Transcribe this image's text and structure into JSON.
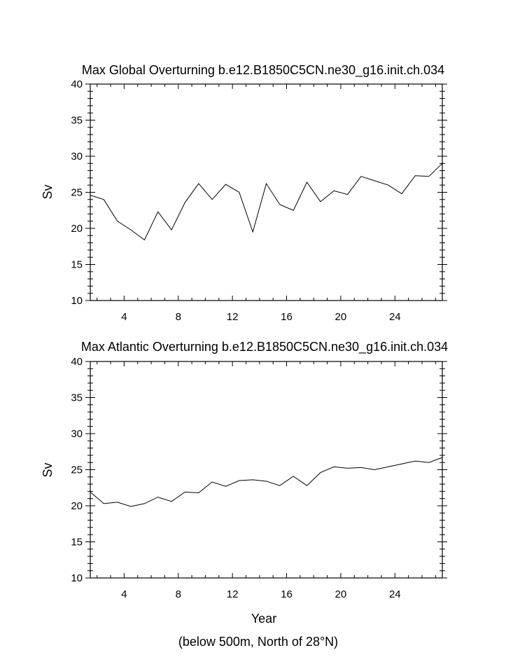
{
  "chart_data": [
    {
      "type": "line",
      "title": "Max Global Overturning b.e12.B1850C5CN.ne30_g16.init.ch.034",
      "ylabel": "Sv",
      "xlabel": "",
      "ylim": [
        10,
        40
      ],
      "xlim": [
        1.5,
        27.5
      ],
      "x_ticks": [
        4,
        8,
        12,
        16,
        20,
        24
      ],
      "y_ticks": [
        10,
        15,
        20,
        25,
        30,
        35,
        40
      ],
      "grid": false,
      "series": [
        {
          "x": [
            1.5,
            2.5,
            3.5,
            4.5,
            5.5,
            6.5,
            7.5,
            8.5,
            9.5,
            10.5,
            11.5,
            12.5,
            13.5,
            14.5,
            15.5,
            16.5,
            17.5,
            18.5,
            19.5,
            20.5,
            21.5,
            22.5,
            23.5,
            24.5,
            25.5,
            26.5,
            27.5
          ],
          "values": [
            24.6,
            24.0,
            21.0,
            19.8,
            18.4,
            22.3,
            19.8,
            23.6,
            26.2,
            24.0,
            26.1,
            25.0,
            19.5,
            26.2,
            23.3,
            22.5,
            26.4,
            23.7,
            25.2,
            24.7,
            27.2,
            26.6,
            26.0,
            24.8,
            27.3,
            27.2,
            29.0
          ]
        }
      ]
    },
    {
      "type": "line",
      "title": "Max Atlantic Overturning b.e12.B1850C5CN.ne30_g16.init.ch.034",
      "ylabel": "Sv",
      "xlabel": "Year",
      "subcaption": "(below 500m, North of 28°N)",
      "ylim": [
        10,
        40
      ],
      "xlim": [
        1.5,
        27.5
      ],
      "x_ticks": [
        4,
        8,
        12,
        16,
        20,
        24
      ],
      "y_ticks": [
        10,
        15,
        20,
        25,
        30,
        35,
        40
      ],
      "grid": false,
      "series": [
        {
          "x": [
            1.5,
            2.5,
            3.5,
            4.5,
            5.5,
            6.5,
            7.5,
            8.5,
            9.5,
            10.5,
            11.5,
            12.5,
            13.5,
            14.5,
            15.5,
            16.5,
            17.5,
            18.5,
            19.5,
            20.5,
            21.5,
            22.5,
            23.5,
            24.5,
            25.5,
            26.5,
            27.5
          ],
          "values": [
            21.9,
            20.3,
            20.5,
            19.9,
            20.3,
            21.2,
            20.6,
            21.9,
            21.8,
            23.3,
            22.7,
            23.5,
            23.6,
            23.4,
            22.8,
            24.1,
            22.8,
            24.6,
            25.4,
            25.2,
            25.3,
            25.0,
            25.4,
            25.8,
            26.2,
            26.0,
            26.7
          ]
        }
      ]
    }
  ]
}
